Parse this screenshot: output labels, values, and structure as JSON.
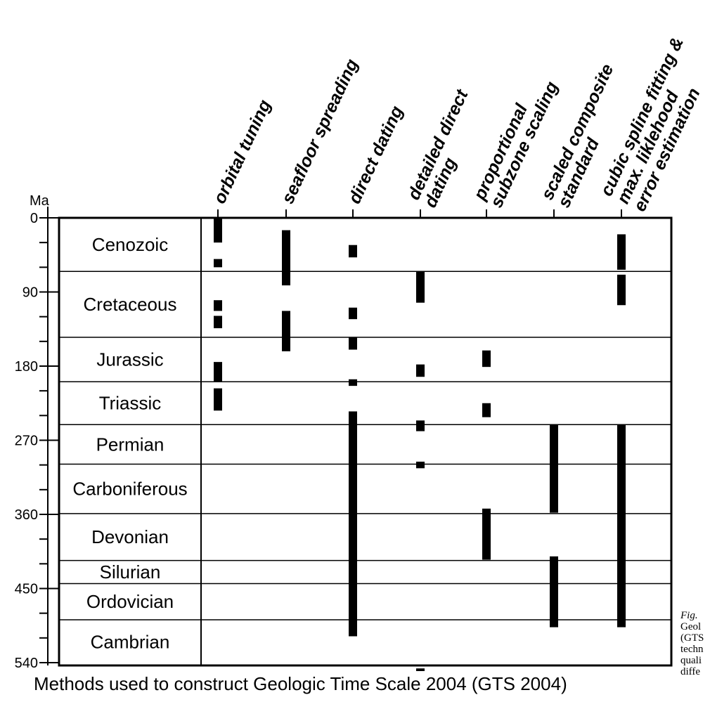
{
  "chart_data": {
    "type": "range-bars",
    "ylabel": "Ma",
    "ylim": [
      0,
      540
    ],
    "y_ticks_labeled": [
      0,
      90,
      180,
      270,
      360,
      450,
      540
    ],
    "y_ticks_minor": [
      30,
      60,
      120,
      150,
      210,
      240,
      300,
      330,
      390,
      420,
      480,
      510
    ],
    "periods": [
      {
        "name": "Cenozoic",
        "start": 0,
        "end": 65
      },
      {
        "name": "Cretaceous",
        "start": 65,
        "end": 145
      },
      {
        "name": "Jurassic",
        "start": 145,
        "end": 199
      },
      {
        "name": "Triassic",
        "start": 199,
        "end": 251
      },
      {
        "name": "Permian",
        "start": 251,
        "end": 299
      },
      {
        "name": "Carboniferous",
        "start": 299,
        "end": 359
      },
      {
        "name": "Devonian",
        "start": 359,
        "end": 416
      },
      {
        "name": "Silurian",
        "start": 416,
        "end": 444
      },
      {
        "name": "Ordovician",
        "start": 444,
        "end": 488
      },
      {
        "name": "Cambrian",
        "start": 488,
        "end": 542
      }
    ],
    "methods": [
      {
        "lines": [
          "orbital tuning"
        ],
        "ranges": [
          [
            0,
            30
          ],
          [
            50,
            60
          ],
          [
            100,
            113
          ],
          [
            119,
            134
          ],
          [
            175,
            199
          ],
          [
            207,
            234
          ]
        ]
      },
      {
        "lines": [
          "seafloor spreading"
        ],
        "ranges": [
          [
            15,
            82
          ],
          [
            113,
            162
          ]
        ]
      },
      {
        "lines": [
          "direct dating"
        ],
        "ranges": [
          [
            33,
            48
          ],
          [
            109,
            123
          ],
          [
            145,
            160
          ],
          [
            196,
            204
          ],
          [
            235,
            508
          ]
        ]
      },
      {
        "lines": [
          "detailed direct",
          "dating"
        ],
        "ranges": [
          [
            65,
            103
          ],
          [
            178,
            193
          ],
          [
            246,
            259
          ],
          [
            296,
            304
          ],
          [
            547,
            555
          ]
        ]
      },
      {
        "lines": [
          "proportional",
          "subzone scaling"
        ],
        "ranges": [
          [
            161,
            181
          ],
          [
            225,
            242
          ],
          [
            353,
            415
          ]
        ]
      },
      {
        "lines": [
          "scaled composite",
          "standard"
        ],
        "ranges": [
          [
            251,
            358
          ],
          [
            411,
            497
          ]
        ]
      },
      {
        "lines": [
          "cubic spline fitting &",
          "max. liklehood",
          "error estimation"
        ],
        "ranges": [
          [
            20,
            63
          ],
          [
            69,
            106
          ],
          [
            251,
            497
          ]
        ]
      }
    ]
  },
  "caption": "Methods used to construct Geologic Time Scale 2004 (GTS 2004)",
  "side_caption": [
    "Fig.",
    "Geol",
    "(GTS",
    "techn",
    "quali",
    "diffe"
  ]
}
